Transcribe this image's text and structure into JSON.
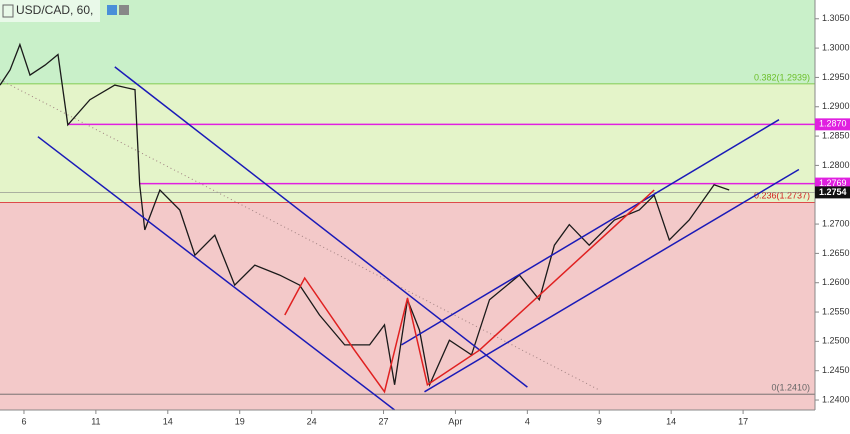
{
  "chart_data": {
    "type": "line",
    "title": "USD/CAD, 60,",
    "color": "#1a1a1a",
    "x": [
      -1,
      -0.58,
      -0.17,
      0.25,
      0.88,
      1.42,
      1.83,
      2.75,
      3.79,
      4.63,
      4.83,
      5.04,
      5.67,
      6.5,
      7.13,
      7.96,
      8.79,
      9.63,
      10.67,
      11.5,
      12.33,
      13.38,
      14.42,
      15.04,
      15.46,
      16,
      16.5,
      16.92,
      17.75,
      18.67,
      19.42,
      20.67,
      21.5,
      22.13,
      22.75,
      23.58,
      24.63,
      25.67,
      26.29,
      26.92,
      27.75,
      28.79,
      29.42
    ],
    "values": [
      1.2937,
      1.2963,
      1.3006,
      1.2954,
      1.2971,
      1.2989,
      1.2869,
      1.2912,
      1.2937,
      1.2929,
      1.2767,
      1.269,
      1.2758,
      1.2724,
      1.2647,
      1.2681,
      1.2596,
      1.263,
      1.2613,
      1.2596,
      1.2545,
      1.2494,
      1.2494,
      1.2528,
      1.2426,
      1.2571,
      1.2519,
      1.2426,
      1.2502,
      1.2477,
      1.2571,
      1.2613,
      1.2571,
      1.2664,
      1.2699,
      1.2664,
      1.2707,
      1.2724,
      1.2749,
      1.2673,
      1.2707,
      1.2767,
      1.2758
    ],
    "xlim": [
      -1,
      33
    ],
    "ylim": [
      1.2383,
      1.3082
    ],
    "xticks": [
      {
        "value": 0,
        "label": "6"
      },
      {
        "value": 3,
        "label": "11"
      },
      {
        "value": 6,
        "label": "14"
      },
      {
        "value": 9,
        "label": "19"
      },
      {
        "value": 12,
        "label": "24"
      },
      {
        "value": 15,
        "label": "27"
      },
      {
        "value": 18,
        "label": "Apr"
      },
      {
        "value": 21,
        "label": "4"
      },
      {
        "value": 24,
        "label": "9"
      },
      {
        "value": 27,
        "label": "14"
      },
      {
        "value": 30,
        "label": "17"
      }
    ],
    "yticks": [
      {
        "value": 1.24,
        "label": "1.2400"
      },
      {
        "value": 1.245,
        "label": "1.2450"
      },
      {
        "value": 1.25,
        "label": "1.2500"
      },
      {
        "value": 1.255,
        "label": "1.2550"
      },
      {
        "value": 1.26,
        "label": "1.2600"
      },
      {
        "value": 1.265,
        "label": "1.2650"
      },
      {
        "value": 1.27,
        "label": "1.2700"
      },
      {
        "value": 1.275,
        "label": "1.2750"
      },
      {
        "value": 1.28,
        "label": "1.2800"
      },
      {
        "value": 1.285,
        "label": "1.2850"
      },
      {
        "value": 1.29,
        "label": "1.2900"
      },
      {
        "value": 1.295,
        "label": "1.2950"
      },
      {
        "value": 1.3,
        "label": "1.3000"
      },
      {
        "value": 1.305,
        "label": "1.3050"
      }
    ],
    "fib_levels": [
      {
        "value": 1.2939,
        "label": "0.382(1.2939)",
        "color": "#6cbf2a"
      },
      {
        "value": 1.2737,
        "label": "0.236(1.2737)",
        "color": "#d62020"
      },
      {
        "value": 1.241,
        "label": "0(1.2410)",
        "color": "#666666"
      }
    ],
    "zone_colors": [
      "#c9f0c9",
      "#e4f4c9",
      "#f3c9c9"
    ],
    "hlines": [
      {
        "value": 1.287,
        "label": "1.2870",
        "x_start": 1.83,
        "color": "#e020e0"
      },
      {
        "value": 1.2769,
        "label": "1.2769",
        "x_start": 4.83,
        "color": "#e020e0"
      }
    ],
    "last_price": {
      "value": 1.2754,
      "label": "1.2754"
    },
    "trendlines": [
      {
        "color": "#1a1ab8",
        "x": [
          3.79,
          21
        ],
        "y": [
          1.2968,
          1.2422
        ]
      },
      {
        "color": "#1a1ab8",
        "x": [
          0.58,
          15.46
        ],
        "y": [
          1.2849,
          1.238
        ]
      },
      {
        "color": "#1a1ab8",
        "x": [
          15.75,
          31.5
        ],
        "y": [
          1.2494,
          1.2878
        ]
      },
      {
        "color": "#1a1ab8",
        "x": [
          16.71,
          32.33
        ],
        "y": [
          1.2414,
          1.2793
        ]
      },
      {
        "color": "#e02020",
        "x": [
          10.88,
          11.71,
          13.79,
          15.04,
          16,
          16.83,
          19,
          26.29
        ],
        "y": [
          1.2545,
          1.2608,
          1.2485,
          1.2414,
          1.2574,
          1.2426,
          1.2485,
          1.2758
        ]
      }
    ],
    "dotted_line": {
      "color": "#a08080",
      "x": [
        -1,
        24
      ],
      "y": [
        1.2946,
        1.2417
      ]
    }
  }
}
